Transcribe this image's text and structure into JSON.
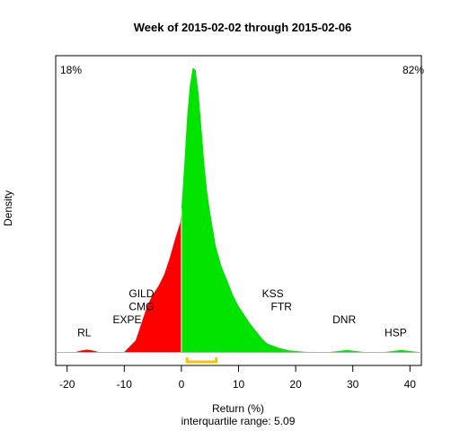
{
  "chart_data": {
    "type": "area",
    "title": "Week of 2015-02-02 through 2015-02-06",
    "xlabel": "Return (%)",
    "ylabel": "Density",
    "subtitle": "interquartile range: 5.09",
    "xlim": [
      -22,
      42
    ],
    "ylim": [
      0,
      1
    ],
    "x_ticks": [
      "-20",
      "-10",
      "0",
      "10",
      "20",
      "30",
      "40"
    ],
    "x_tick_values": [
      -20,
      -10,
      0,
      10,
      20,
      30,
      40
    ],
    "pct_negative": "18%",
    "pct_positive": "82%",
    "colors": {
      "negative": "#ff0000",
      "positive": "#00e400",
      "iqr": "#ffc000",
      "left_pct": "#d00000",
      "right_pct": "#009900"
    },
    "iqr_range": [
      1.0,
      6.09
    ],
    "density": {
      "x": [
        -18.5,
        -17.5,
        -16.5,
        -15.5,
        -14.5,
        -10,
        -8,
        -7,
        -6,
        -5,
        -4,
        -3,
        -2,
        -1,
        -0.2,
        0,
        0.5,
        1,
        1.5,
        2,
        2.5,
        3,
        3.5,
        4,
        4.5,
        5,
        5.5,
        6,
        7,
        8,
        9,
        10,
        11,
        12,
        13,
        14,
        15,
        17,
        19,
        22,
        26,
        27.5,
        29,
        30.5,
        32,
        35.5,
        37,
        38.5,
        40,
        41.5
      ],
      "y": [
        0,
        0.005,
        0.008,
        0.005,
        0,
        0,
        0.04,
        0.1,
        0.16,
        0.2,
        0.23,
        0.27,
        0.33,
        0.4,
        0.45,
        0.5,
        0.65,
        0.82,
        0.93,
        0.99,
        0.98,
        0.9,
        0.78,
        0.66,
        0.56,
        0.49,
        0.43,
        0.37,
        0.3,
        0.25,
        0.2,
        0.16,
        0.13,
        0.1,
        0.075,
        0.05,
        0.03,
        0.015,
        0.005,
        0,
        0,
        0.003,
        0.007,
        0.003,
        0,
        0,
        0.003,
        0.007,
        0.003,
        0
      ]
    },
    "annotations": [
      {
        "label": "RL",
        "x": -17,
        "y": 0.055
      },
      {
        "label": "EXPE",
        "x": -9.5,
        "y": 0.1
      },
      {
        "label": "CMG",
        "x": -7,
        "y": 0.145
      },
      {
        "label": "GILD",
        "x": -7,
        "y": 0.19
      },
      {
        "label": "KSS",
        "x": 16,
        "y": 0.19
      },
      {
        "label": "FTR",
        "x": 17.5,
        "y": 0.145
      },
      {
        "label": "DNR",
        "x": 28.5,
        "y": 0.1
      },
      {
        "label": "HSP",
        "x": 37.5,
        "y": 0.055
      }
    ]
  }
}
